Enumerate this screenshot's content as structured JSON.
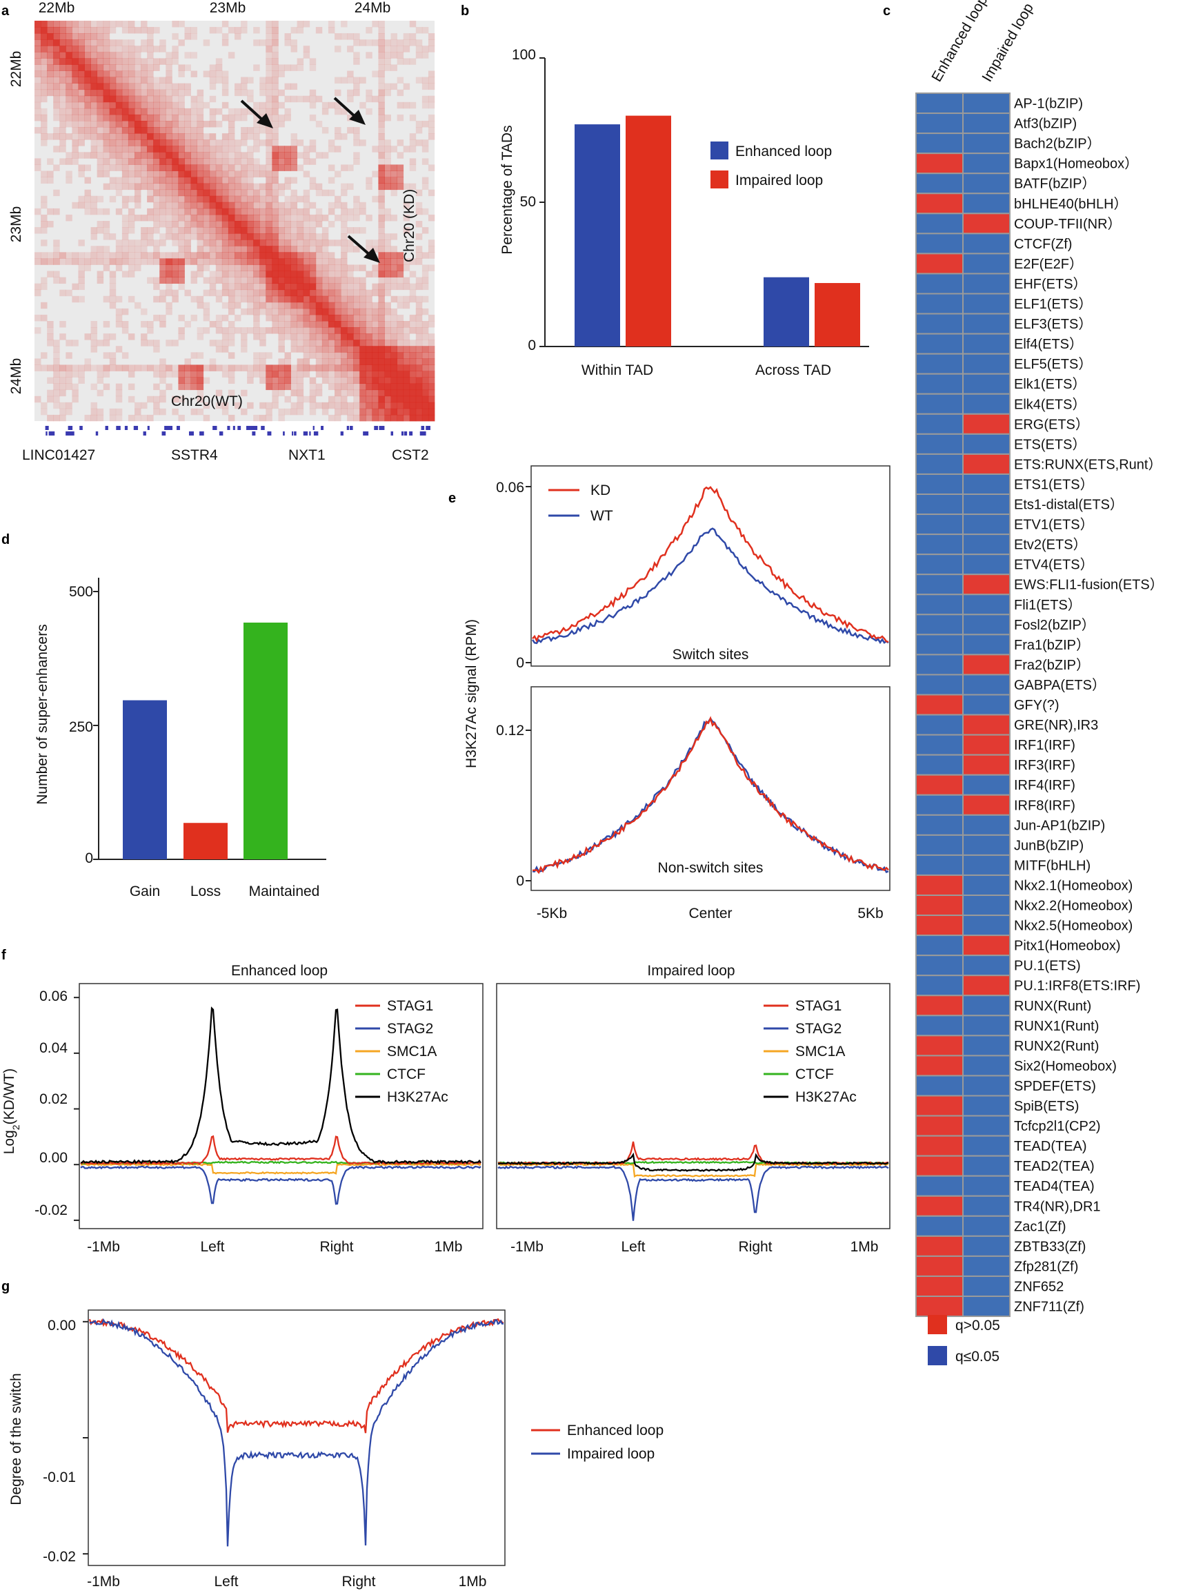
{
  "panel_letters": {
    "a": "a",
    "b": "b",
    "c": "c",
    "d": "d",
    "e": "e",
    "f": "f",
    "g": "g"
  },
  "colors": {
    "red": "#e0301e",
    "blue": "#2f49a8",
    "green": "#34b31e",
    "orange": "#f5a623",
    "black": "#000000",
    "heat_blue": "#3f6fb5",
    "heat_red": "#e23a32"
  },
  "chart_data": [
    {
      "id": "a",
      "type": "heatmap",
      "top_ticks": [
        "22Mb",
        "23Mb",
        "24Mb"
      ],
      "left_ticks": [
        "22Mb",
        "23Mb",
        "24Mb"
      ],
      "lower_label": "Chr20(WT)",
      "upper_label": "Chr20 (KD)",
      "genes": [
        "LINC01427",
        "SSTR4",
        "NXT1",
        "CST2"
      ]
    },
    {
      "id": "b",
      "type": "bar",
      "ylabel": "Percentage of TADs",
      "categories": [
        "Within TAD",
        "Across TAD"
      ],
      "series": [
        {
          "name": "Enhanced loop",
          "values": [
            77,
            24
          ]
        },
        {
          "name": "Impaired loop",
          "values": [
            80,
            22
          ]
        }
      ],
      "ylim": [
        0,
        100
      ],
      "yticks": [
        "0",
        "50",
        "100"
      ],
      "legend": "right"
    },
    {
      "id": "c",
      "type": "heatmap",
      "columns": [
        "Enhanced loop",
        "Impaired loop"
      ],
      "rows": [
        "AP-1(bZIP)",
        "Atf3(bZIP)",
        "Bach2(bZIP）",
        "Bapx1(Homeobox）",
        "BATF(bZIP）",
        "bHLHE40(bHLH）",
        "COUP-TFII(NR）",
        "CTCF(Zf)",
        "E2F(E2F）",
        "EHF(ETS）",
        "ELF1(ETS）",
        "ELF3(ETS）",
        "Elf4(ETS）",
        "ELF5(ETS）",
        "Elk1(ETS）",
        "Elk4(ETS）",
        "ERG(ETS）",
        "ETS(ETS）",
        "ETS:RUNX(ETS,Runt）",
        "ETS1(ETS）",
        "Ets1-distal(ETS）",
        "ETV1(ETS）",
        "Etv2(ETS）",
        "ETV4(ETS）",
        "EWS:FLI1-fusion(ETS）",
        "Fli1(ETS）",
        "Fosl2(bZIP）",
        "Fra1(bZIP）",
        "Fra2(bZIP）",
        "GABPA(ETS）",
        "GFY(?)",
        "GRE(NR),IR3",
        "IRF1(IRF)",
        "IRF3(IRF)",
        "IRF4(IRF)",
        "IRF8(IRF)",
        "Jun-AP1(bZIP)",
        "JunB(bZIP)",
        "MITF(bHLH)",
        "Nkx2.1(Homeobox)",
        "Nkx2.2(Homeobox)",
        "Nkx2.5(Homeobox)",
        "Pitx1(Homeobox)",
        "PU.1(ETS)",
        "PU.1:IRF8(ETS:IRF)",
        "RUNX(Runt)",
        "RUNX1(Runt)",
        "RUNX2(Runt)",
        "Six2(Homeobox)",
        "SPDEF(ETS)",
        "SpiB(ETS)",
        "Tcfcp2l1(CP2)",
        "TEAD(TEA)",
        "TEAD2(TEA)",
        "TEAD4(TEA)",
        "TR4(NR),DR1",
        "Zac1(Zf)",
        "ZBTB33(Zf)",
        "Zfp281(Zf)",
        "ZNF652",
        "ZNF711(Zf)"
      ],
      "enhanced_red": [
        3,
        5,
        8,
        30,
        34,
        39,
        40,
        41,
        45,
        47,
        48,
        50,
        51,
        52,
        53,
        55,
        57,
        58,
        59,
        60
      ],
      "impaired_red": [
        6,
        16,
        18,
        24,
        28,
        31,
        32,
        33,
        35,
        42,
        44
      ],
      "legend": [
        {
          "label": "q>0.05",
          "color": "red"
        },
        {
          "label": "q≤0.05",
          "color": "blue"
        }
      ]
    },
    {
      "id": "d",
      "type": "bar",
      "ylabel": "Number of super-enhancers",
      "categories": [
        "Gain",
        "Loss",
        "Maintained"
      ],
      "values": [
        297,
        68,
        442
      ],
      "ylim": [
        0,
        500
      ],
      "yticks": [
        "0",
        "250",
        "500"
      ]
    },
    {
      "id": "e",
      "type": "line",
      "ylabel": "H3K27Ac signal (RPM)",
      "xticks": [
        "-5Kb",
        "Center",
        "5Kb"
      ],
      "legend": [
        "KD",
        "WT"
      ],
      "top": {
        "label": "Switch sites",
        "yticks": [
          "0",
          "0.06"
        ],
        "ylim": [
          0,
          0.066
        ],
        "KD_peak": 0.063,
        "WT_peak": 0.048,
        "base": 0.004
      },
      "bottom": {
        "label": "Non-switch sites",
        "yticks": [
          "0",
          "0.12"
        ],
        "ylim": [
          0,
          0.15
        ],
        "KD_peak": 0.133,
        "WT_peak": 0.134,
        "base": 0.002
      }
    },
    {
      "id": "f",
      "type": "line",
      "ylabel": "Log2(KD/WT)",
      "ylabel_main": "Log",
      "ylabel_sub": "2",
      "ylabel_rest": "(KD/WT)",
      "yticks": [
        "-0.02",
        "0.00",
        "0.02",
        "0.04",
        "0.06"
      ],
      "ylim": [
        -0.023,
        0.065
      ],
      "xticks": [
        "-1Mb",
        "Left",
        "Right",
        "1Mb"
      ],
      "legend": [
        "STAG1",
        "STAG2",
        "SMC1A",
        "CTCF",
        "H3K27Ac"
      ],
      "panels": [
        {
          "title": "Enhanced loop",
          "peaks": {
            "STAG1": 0.012,
            "STAG2": -0.016,
            "SMC1A": -0.003,
            "CTCF": 0.001,
            "H3K27Ac": 0.06
          }
        },
        {
          "title": "Impaired loop",
          "peaks": {
            "STAG1": 0.008,
            "STAG2": -0.02,
            "SMC1A": -0.004,
            "CTCF": 0.001,
            "H3K27Ac": 0.003
          }
        }
      ]
    },
    {
      "id": "g",
      "type": "line",
      "ylabel": "Degree of the switch",
      "yticks": [
        "-0.02",
        "-0.01",
        "0.00"
      ],
      "ylim": [
        -0.021,
        0.001
      ],
      "xticks": [
        "-1Mb",
        "Left",
        "Right",
        "1Mb"
      ],
      "series": [
        {
          "name": "Enhanced loop",
          "middle": -0.0088,
          "min": -0.0094
        },
        {
          "name": "Impaired loop",
          "middle": -0.0115,
          "min": -0.0195
        }
      ]
    }
  ]
}
